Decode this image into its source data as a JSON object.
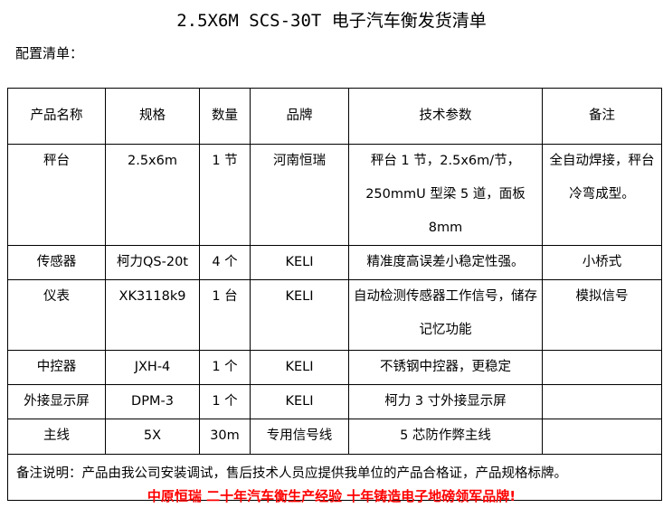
{
  "title": "2.5X6M SCS-30T 电子汽车衡发货清单",
  "subtitle": "配置清单：",
  "headers": [
    "产品名称",
    "规格",
    "数量",
    "品牌",
    "技术参数",
    "备注"
  ],
  "rows": [
    [
      "秤台",
      "2.5x6m",
      "1 节",
      "河南恒瑞",
      "秤台 1 节，2.5x6m/节，250mmU 型梁 5 道，面板 8mm",
      "全自动焊接，秤台冷弯成型。"
    ],
    [
      "传感器",
      "柯力QS-20t",
      "4 个",
      "KELI",
      "精准度高误差小稳定性强。",
      "小桥式"
    ],
    [
      "仪表",
      "XK3118k9",
      "1 台",
      "KELI",
      "自动检测传感器工作信号，储存记忆功能",
      "模拟信号"
    ],
    [
      "中控器",
      "JXH-4",
      "1 个",
      "KELI",
      "不锈钢中控器，更稳定",
      ""
    ],
    [
      "外接显示屏",
      "DPM-3",
      "1 个",
      "KELI",
      "柯力 3 寸外接显示屏",
      ""
    ],
    [
      "主线",
      "5X",
      "30m",
      "专用信号线",
      "5 芯防作弊主线",
      ""
    ]
  ],
  "note": "备注说明：产品由我公司安装调试，售后技术人员应提供我单位的产品合格证，产品规格标牌。",
  "footer": "中原恒瑞 二十年汽车衡生产经验 十年铸造电子地磅领军品牌!",
  "colors": {
    "footer": "#ff0000"
  }
}
